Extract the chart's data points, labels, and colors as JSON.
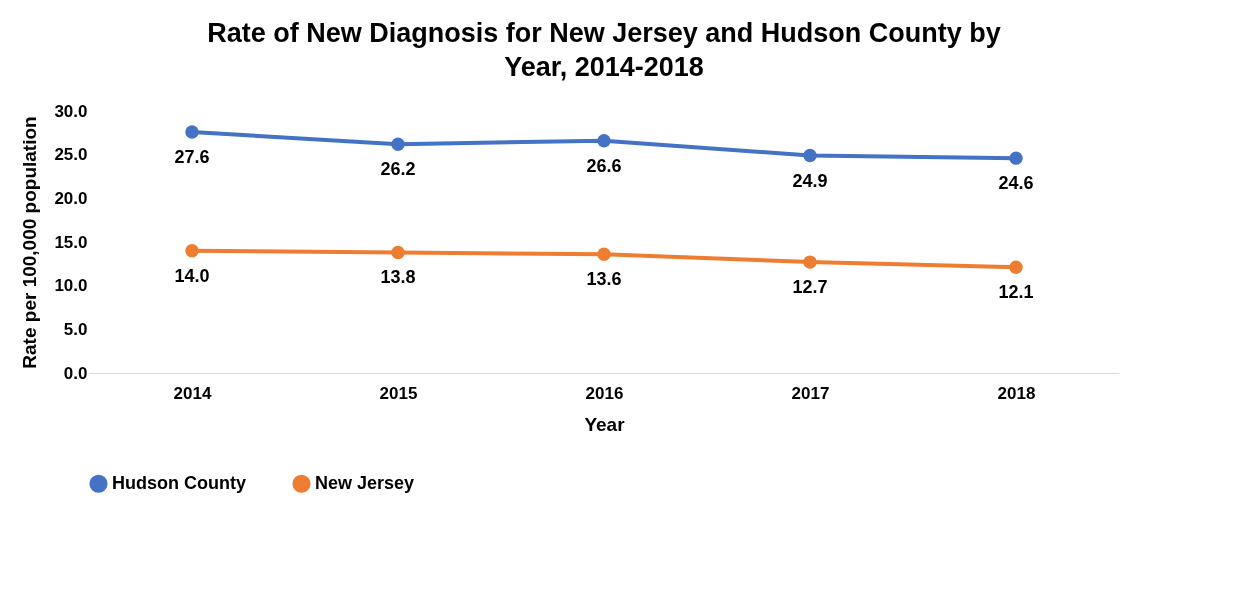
{
  "chart_data": {
    "type": "line",
    "title": "Rate of New Diagnosis for New Jersey and Hudson County by Year, 2014-2018",
    "xlabel": "Year",
    "ylabel": "Rate per 100,000 population",
    "categories": [
      "2014",
      "2015",
      "2016",
      "2017",
      "2018"
    ],
    "series": [
      {
        "name": "Hudson County",
        "color": "#4472c4",
        "values": [
          27.6,
          26.2,
          26.6,
          24.9,
          24.6
        ],
        "value_labels": [
          "27.6",
          "26.2",
          "26.6",
          "24.9",
          "24.6"
        ]
      },
      {
        "name": "New Jersey",
        "color": "#ed7d31",
        "values": [
          14.0,
          13.8,
          13.6,
          12.7,
          12.1
        ],
        "value_labels": [
          "14.0",
          "13.8",
          "13.6",
          "12.7",
          "12.1"
        ]
      }
    ],
    "ylim": [
      0,
      30
    ],
    "yticks": [
      {
        "value": 0,
        "label": "0.0"
      },
      {
        "value": 5,
        "label": "5.0"
      },
      {
        "value": 10,
        "label": "10.0"
      },
      {
        "value": 15,
        "label": "15.0"
      },
      {
        "value": 20,
        "label": "20.0"
      },
      {
        "value": 25,
        "label": "25.0"
      },
      {
        "value": 30,
        "label": "30.0"
      }
    ],
    "legend": "bottom",
    "marker": "circle"
  }
}
